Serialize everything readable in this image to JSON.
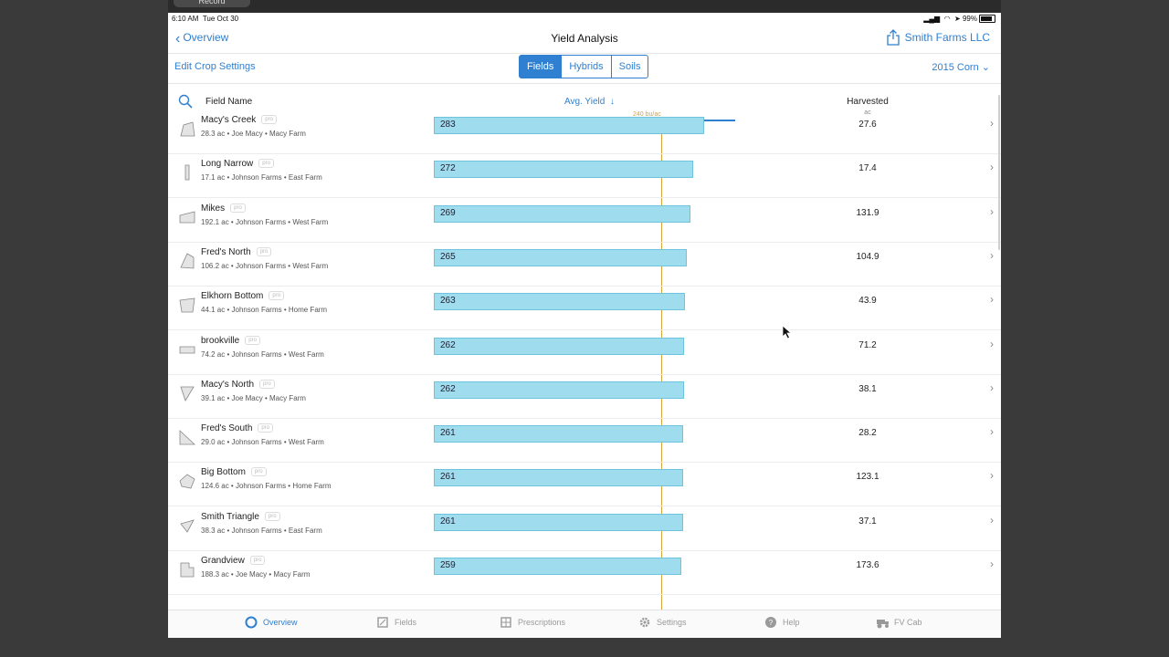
{
  "recorder_label": "Record",
  "status": {
    "time": "6:10 AM",
    "day": "Tue Oct 30",
    "battery": "99%"
  },
  "nav": {
    "back_label": "Overview",
    "title": "Yield Analysis",
    "account": "Smith Farms LLC"
  },
  "toolbar": {
    "edit_label": "Edit Crop Settings",
    "segments": [
      "Fields",
      "Hybrids",
      "Soils"
    ],
    "active_segment": "Fields",
    "season": "2015 Corn"
  },
  "columns": {
    "field_name": "Field Name",
    "avg_yield": "Avg. Yield",
    "harvested": "Harvested",
    "harvested_unit": "ac",
    "target_label": "240 bu/ac",
    "target_value": 240
  },
  "chart_data": {
    "type": "bar",
    "orientation": "horizontal",
    "categories": [
      "Macy's Creek",
      "Long Narrow",
      "Mikes",
      "Fred's North",
      "Elkhorn Bottom",
      "brookville",
      "Macy's North",
      "Fred's South",
      "Big Bottom",
      "Smith Triangle",
      "Grandview"
    ],
    "values": [
      283,
      272,
      269,
      265,
      263,
      262,
      262,
      261,
      261,
      261,
      259
    ],
    "reference_line": 240,
    "xlim": [
      0,
      318
    ]
  },
  "fields": [
    {
      "name": "Macy's Creek",
      "tag": "pro",
      "meta": "28.3 ac • Joe Macy • Macy Farm",
      "yield": "283",
      "harvested": "27.6"
    },
    {
      "name": "Long Narrow",
      "tag": "pro",
      "meta": "17.1 ac • Johnson Farms • East Farm",
      "yield": "272",
      "harvested": "17.4"
    },
    {
      "name": "Mikes",
      "tag": "pro",
      "meta": "192.1 ac • Johnson Farms • West Farm",
      "yield": "269",
      "harvested": "131.9"
    },
    {
      "name": "Fred's North",
      "tag": "pro",
      "meta": "106.2 ac • Johnson Farms • West Farm",
      "yield": "265",
      "harvested": "104.9"
    },
    {
      "name": "Elkhorn Bottom",
      "tag": "pro",
      "meta": "44.1 ac • Johnson Farms • Home Farm",
      "yield": "263",
      "harvested": "43.9"
    },
    {
      "name": "brookville",
      "tag": "pro",
      "meta": "74.2 ac • Johnson Farms • West Farm",
      "yield": "262",
      "harvested": "71.2"
    },
    {
      "name": "Macy's North",
      "tag": "pro",
      "meta": "39.1 ac • Joe Macy • Macy Farm",
      "yield": "262",
      "harvested": "38.1"
    },
    {
      "name": "Fred's South",
      "tag": "pro",
      "meta": "29.0 ac • Johnson Farms • West Farm",
      "yield": "261",
      "harvested": "28.2"
    },
    {
      "name": "Big Bottom",
      "tag": "pro",
      "meta": "124.6 ac • Johnson Farms • Home Farm",
      "yield": "261",
      "harvested": "123.1"
    },
    {
      "name": "Smith Triangle",
      "tag": "pro",
      "meta": "38.3 ac • Johnson Farms • East Farm",
      "yield": "261",
      "harvested": "37.1"
    },
    {
      "name": "Grandview",
      "tag": "pro",
      "meta": "188.3 ac • Joe Macy • Macy Farm",
      "yield": "259",
      "harvested": "173.6"
    }
  ],
  "tabs": [
    {
      "label": "Overview",
      "icon": "overview-icon",
      "active": true
    },
    {
      "label": "Fields",
      "icon": "fields-icon",
      "active": false
    },
    {
      "label": "Prescriptions",
      "icon": "prescriptions-icon",
      "active": false
    },
    {
      "label": "Settings",
      "icon": "gear-icon",
      "active": false
    },
    {
      "label": "Help",
      "icon": "help-icon",
      "active": false
    },
    {
      "label": "FV Cab",
      "icon": "tractor-icon",
      "active": false
    }
  ],
  "colors": {
    "accent": "#2f80d1",
    "bar": "#9fdcee",
    "target": "#d9a23a"
  }
}
